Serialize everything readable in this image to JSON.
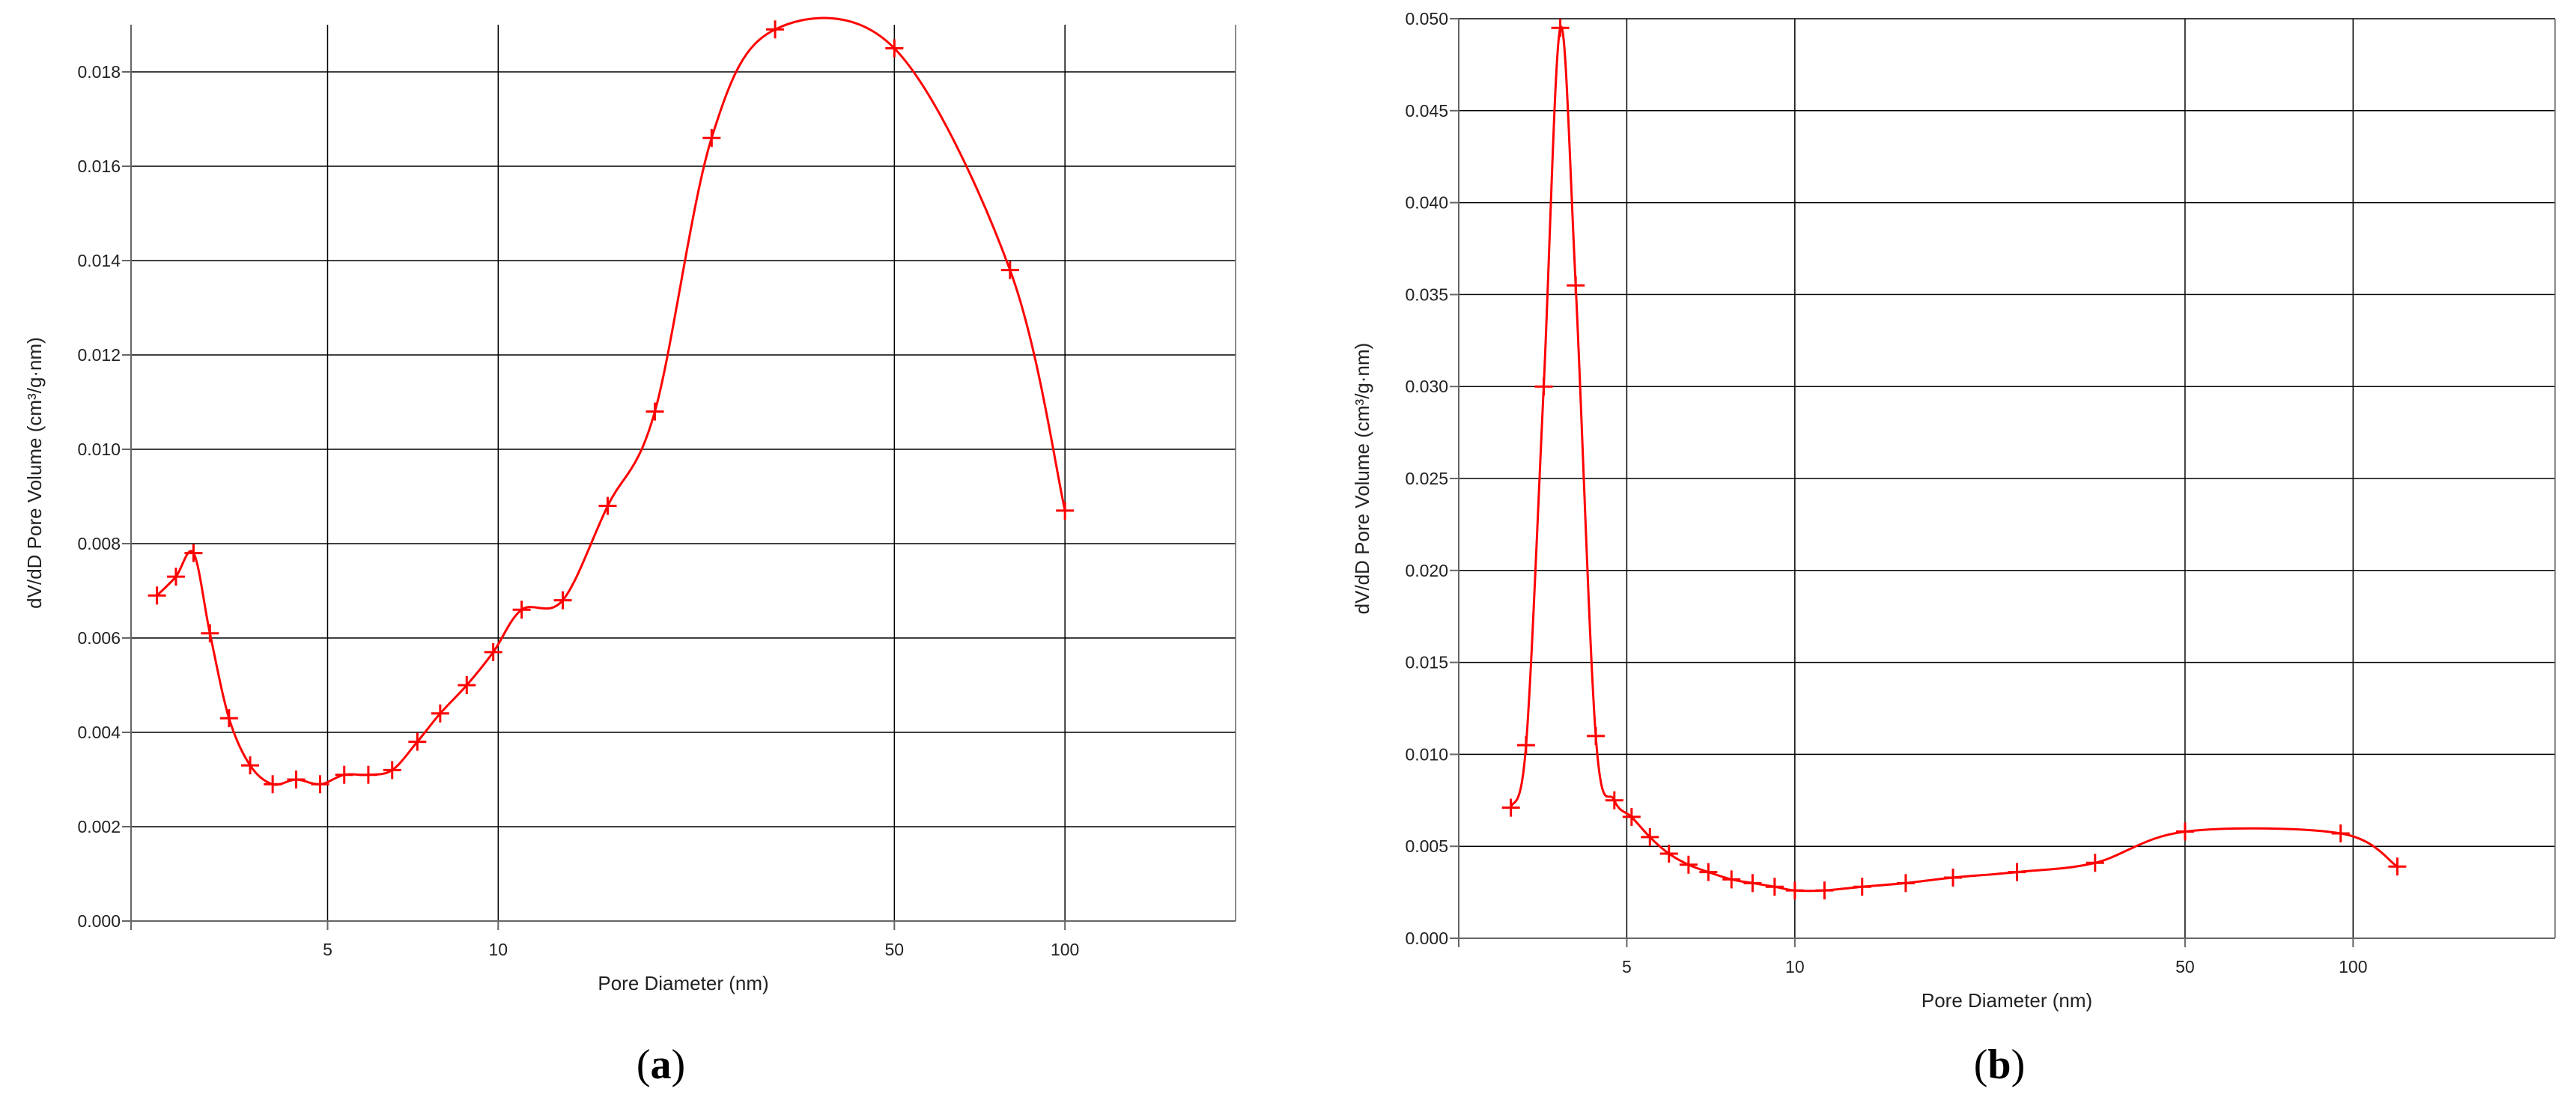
{
  "colors": {
    "series": "#ff0000",
    "grid": "#000000",
    "axis": "#666666",
    "text": "#222222"
  },
  "chart_data": [
    {
      "type": "line",
      "panel_label": "a",
      "xlabel": "Pore Diameter (nm)",
      "ylabel": "dV/dD Pore Volume (cm³/g·nm)",
      "x_scale": "log",
      "xlim": [
        2.25,
        200
      ],
      "ylim": [
        0,
        0.019
      ],
      "x_ticks": [
        5,
        10,
        50,
        100
      ],
      "x_tick_labels": [
        "5",
        "10",
        "50",
        "100"
      ],
      "y_ticks": [
        0,
        0.002,
        0.004,
        0.006,
        0.008,
        0.01,
        0.012,
        0.014,
        0.016,
        0.018
      ],
      "y_tick_labels": [
        "0.000",
        "0.002",
        "0.004",
        "0.006",
        "0.008",
        "0.010",
        "0.012",
        "0.014",
        "0.016",
        "0.018"
      ],
      "grid": true,
      "marker": "+",
      "smooth": true,
      "series": [
        {
          "x": [
            2.5,
            2.7,
            2.9,
            3.1,
            3.35,
            3.65,
            4.0,
            4.4,
            4.85,
            5.35,
            5.9,
            6.5,
            7.2,
            7.9,
            8.8,
            9.8,
            11.0,
            13.0,
            15.6,
            18.9,
            23.8,
            30.8,
            50.0,
            80.0,
            100.0
          ],
          "y": [
            0.0069,
            0.0073,
            0.0078,
            0.0061,
            0.0043,
            0.0033,
            0.0029,
            0.003,
            0.0029,
            0.0031,
            0.0031,
            0.0032,
            0.0038,
            0.0044,
            0.005,
            0.0057,
            0.0066,
            0.0068,
            0.0088,
            0.0108,
            0.0166,
            0.0189,
            0.0185,
            0.0138,
            0.0087
          ]
        }
      ]
    },
    {
      "type": "line",
      "panel_label": "b",
      "xlabel": "Pore Diameter (nm)",
      "ylabel": "dV/dD Pore Volume (cm³/g·nm)",
      "x_scale": "log",
      "xlim": [
        2.5,
        230
      ],
      "ylim": [
        0,
        0.05
      ],
      "x_ticks": [
        5,
        10,
        50,
        100
      ],
      "x_tick_labels": [
        "5",
        "10",
        "50",
        "100"
      ],
      "y_ticks": [
        0,
        0.005,
        0.01,
        0.015,
        0.02,
        0.025,
        0.03,
        0.035,
        0.04,
        0.045,
        0.05
      ],
      "y_tick_labels": [
        "0.000",
        "0.005",
        "0.010",
        "0.015",
        "0.020",
        "0.025",
        "0.030",
        "0.035",
        "0.040",
        "0.045",
        "0.050"
      ],
      "grid": true,
      "marker": "+",
      "smooth": true,
      "series": [
        {
          "x": [
            3.1,
            3.3,
            3.55,
            3.8,
            4.05,
            4.4,
            4.75,
            5.1,
            5.5,
            5.95,
            6.45,
            7.0,
            7.7,
            8.4,
            9.2,
            10.0,
            11.3,
            13.2,
            15.8,
            19.2,
            25.0,
            34.5,
            50.0,
            95.0,
            120.0
          ],
          "y": [
            0.0071,
            0.0105,
            0.03,
            0.0495,
            0.0355,
            0.011,
            0.0075,
            0.0066,
            0.0055,
            0.0046,
            0.004,
            0.0036,
            0.0032,
            0.003,
            0.0028,
            0.0026,
            0.0026,
            0.0028,
            0.003,
            0.0033,
            0.0036,
            0.0041,
            0.0058,
            0.0057,
            0.0039
          ]
        }
      ]
    }
  ]
}
